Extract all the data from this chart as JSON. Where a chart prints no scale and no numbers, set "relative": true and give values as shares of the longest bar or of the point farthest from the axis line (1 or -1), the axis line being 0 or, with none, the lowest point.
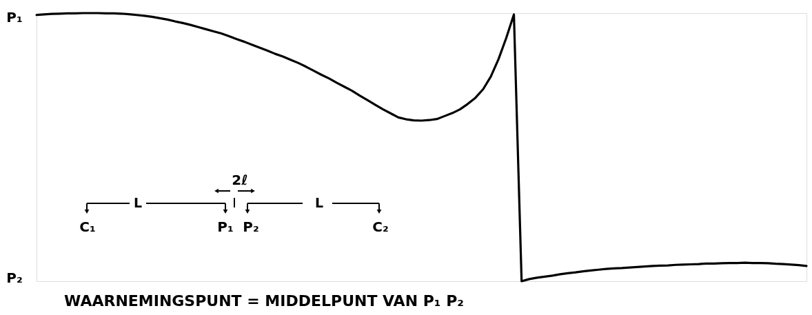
{
  "chart_data": {
    "type": "line",
    "relative": true,
    "color": "#000000",
    "line_style": "solid",
    "categories": [
      null,
      null,
      null,
      null,
      null,
      null,
      null,
      null,
      null,
      null,
      null,
      null,
      null,
      null,
      null,
      null,
      null,
      null,
      null,
      null,
      null,
      null,
      null,
      null,
      null,
      null,
      null,
      null,
      null,
      null,
      null,
      null,
      null,
      null,
      null,
      null,
      null,
      null,
      null,
      null,
      null,
      null,
      null,
      null,
      null,
      null,
      null,
      null,
      null,
      null,
      null,
      null,
      null,
      null,
      null,
      null,
      null,
      null,
      null,
      null,
      null,
      null,
      null,
      null,
      null,
      null,
      null,
      null,
      null,
      null,
      null,
      null,
      null,
      null,
      null,
      null,
      null,
      null,
      null,
      null,
      null,
      null,
      null,
      null,
      null,
      null,
      null,
      null,
      null,
      null,
      null,
      null,
      null,
      null,
      null,
      null,
      null,
      null,
      null,
      null,
      null
    ],
    "values": [
      0.993,
      0.995,
      0.997,
      0.998,
      0.999,
      0.999,
      1.0,
      1.0,
      1.0,
      0.999,
      0.999,
      0.998,
      0.996,
      0.993,
      0.99,
      0.986,
      0.981,
      0.976,
      0.969,
      0.963,
      0.956,
      0.948,
      0.94,
      0.932,
      0.924,
      0.914,
      0.903,
      0.893,
      0.882,
      0.871,
      0.86,
      0.848,
      0.838,
      0.826,
      0.814,
      0.8,
      0.785,
      0.77,
      0.756,
      0.74,
      0.725,
      0.71,
      0.692,
      0.675,
      0.658,
      0.641,
      0.626,
      0.611,
      0.604,
      0.6,
      0.599,
      0.601,
      0.605,
      0.616,
      0.627,
      0.641,
      0.661,
      0.684,
      0.716,
      0.763,
      0.828,
      0.907,
      0.995,
      0.0,
      0.008,
      0.013,
      0.017,
      0.021,
      0.026,
      0.03,
      0.033,
      0.037,
      0.04,
      0.043,
      0.046,
      0.048,
      0.049,
      0.051,
      0.053,
      0.055,
      0.057,
      0.058,
      0.059,
      0.061,
      0.062,
      0.063,
      0.064,
      0.066,
      0.066,
      0.067,
      0.068,
      0.068,
      0.069,
      0.068,
      0.068,
      0.067,
      0.065,
      0.064,
      0.062,
      0.06,
      0.057
    ],
    "annotations": [
      "P₁",
      "P₂",
      "2ℓ",
      "L",
      "L",
      "C₁",
      "P₁",
      "P₂",
      "C₂",
      "WAARNEMINGSPUNT = MIDDELPUNT VAN P₁ P₂"
    ]
  }
}
